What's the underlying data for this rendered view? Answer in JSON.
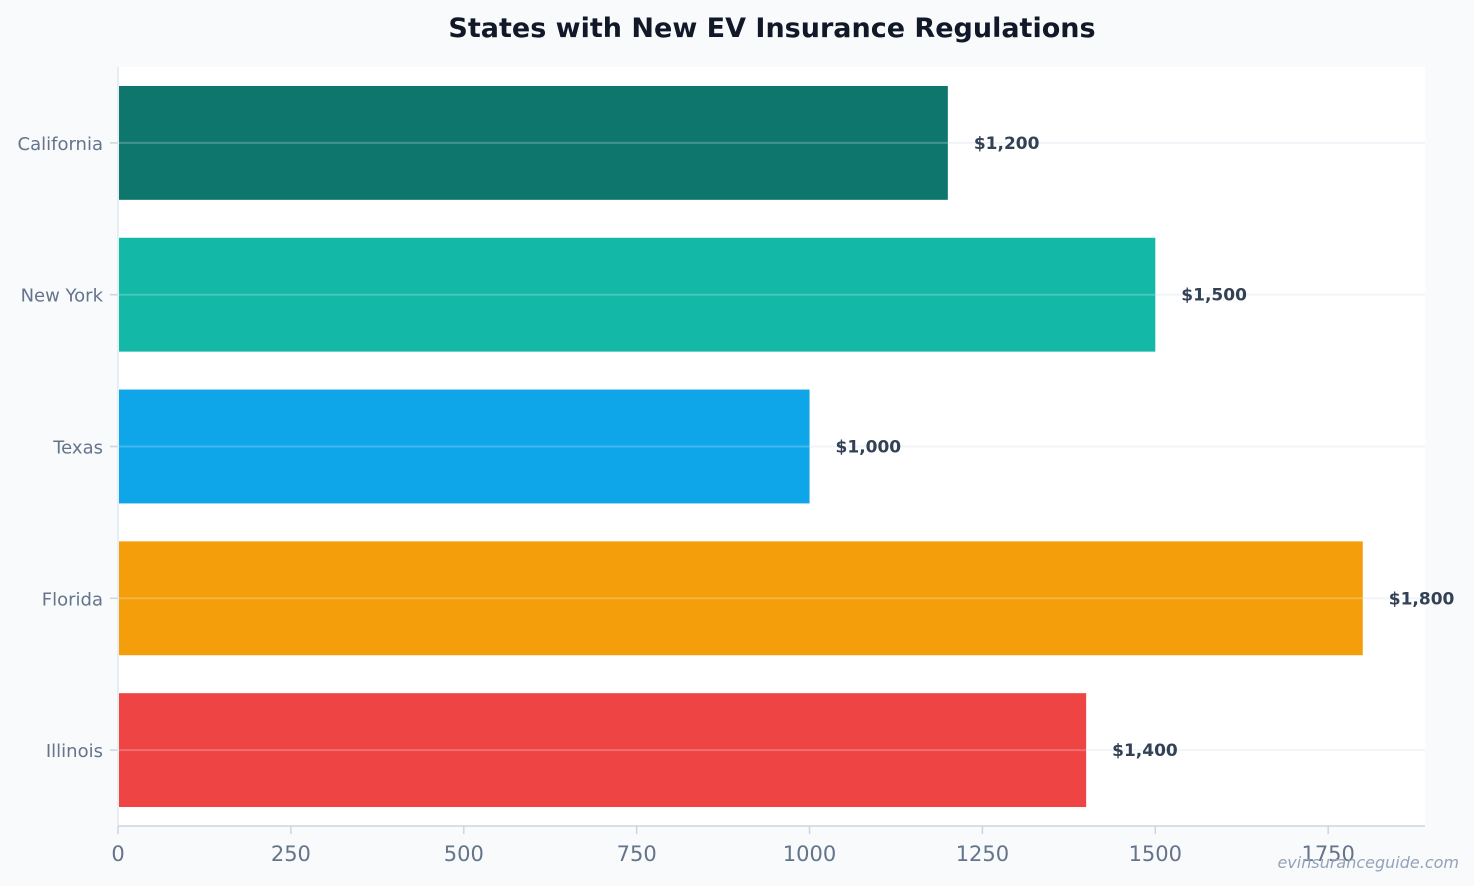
{
  "colors": {
    "background": "#f8fafc",
    "plot_background": "#ffffff",
    "bars": [
      "#0f766e",
      "#14b8a6",
      "#0ea5e9",
      "#f59e0b",
      "#ef4444"
    ],
    "axis": "#cbd5e1",
    "grid": "#f1f5f9"
  },
  "watermark": "evinsuranceguide.com",
  "chart_data": {
    "type": "bar",
    "orientation": "horizontal",
    "title": "States with New EV Insurance Regulations",
    "xlabel": "",
    "ylabel": "",
    "categories": [
      "California",
      "New York",
      "Texas",
      "Florida",
      "Illinois"
    ],
    "values": [
      1200,
      1500,
      1000,
      1800,
      1400
    ],
    "value_labels": [
      "$1,200",
      "$1,500",
      "$1,000",
      "$1,800",
      "$1,400"
    ],
    "xlim": [
      0,
      1890
    ],
    "xticks": [
      0,
      250,
      500,
      750,
      1000,
      1250,
      1500,
      1750
    ],
    "xtick_labels": [
      "0",
      "250",
      "500",
      "750",
      "1000",
      "1250",
      "1500",
      "1750"
    ],
    "grid": true,
    "legend": "none"
  }
}
